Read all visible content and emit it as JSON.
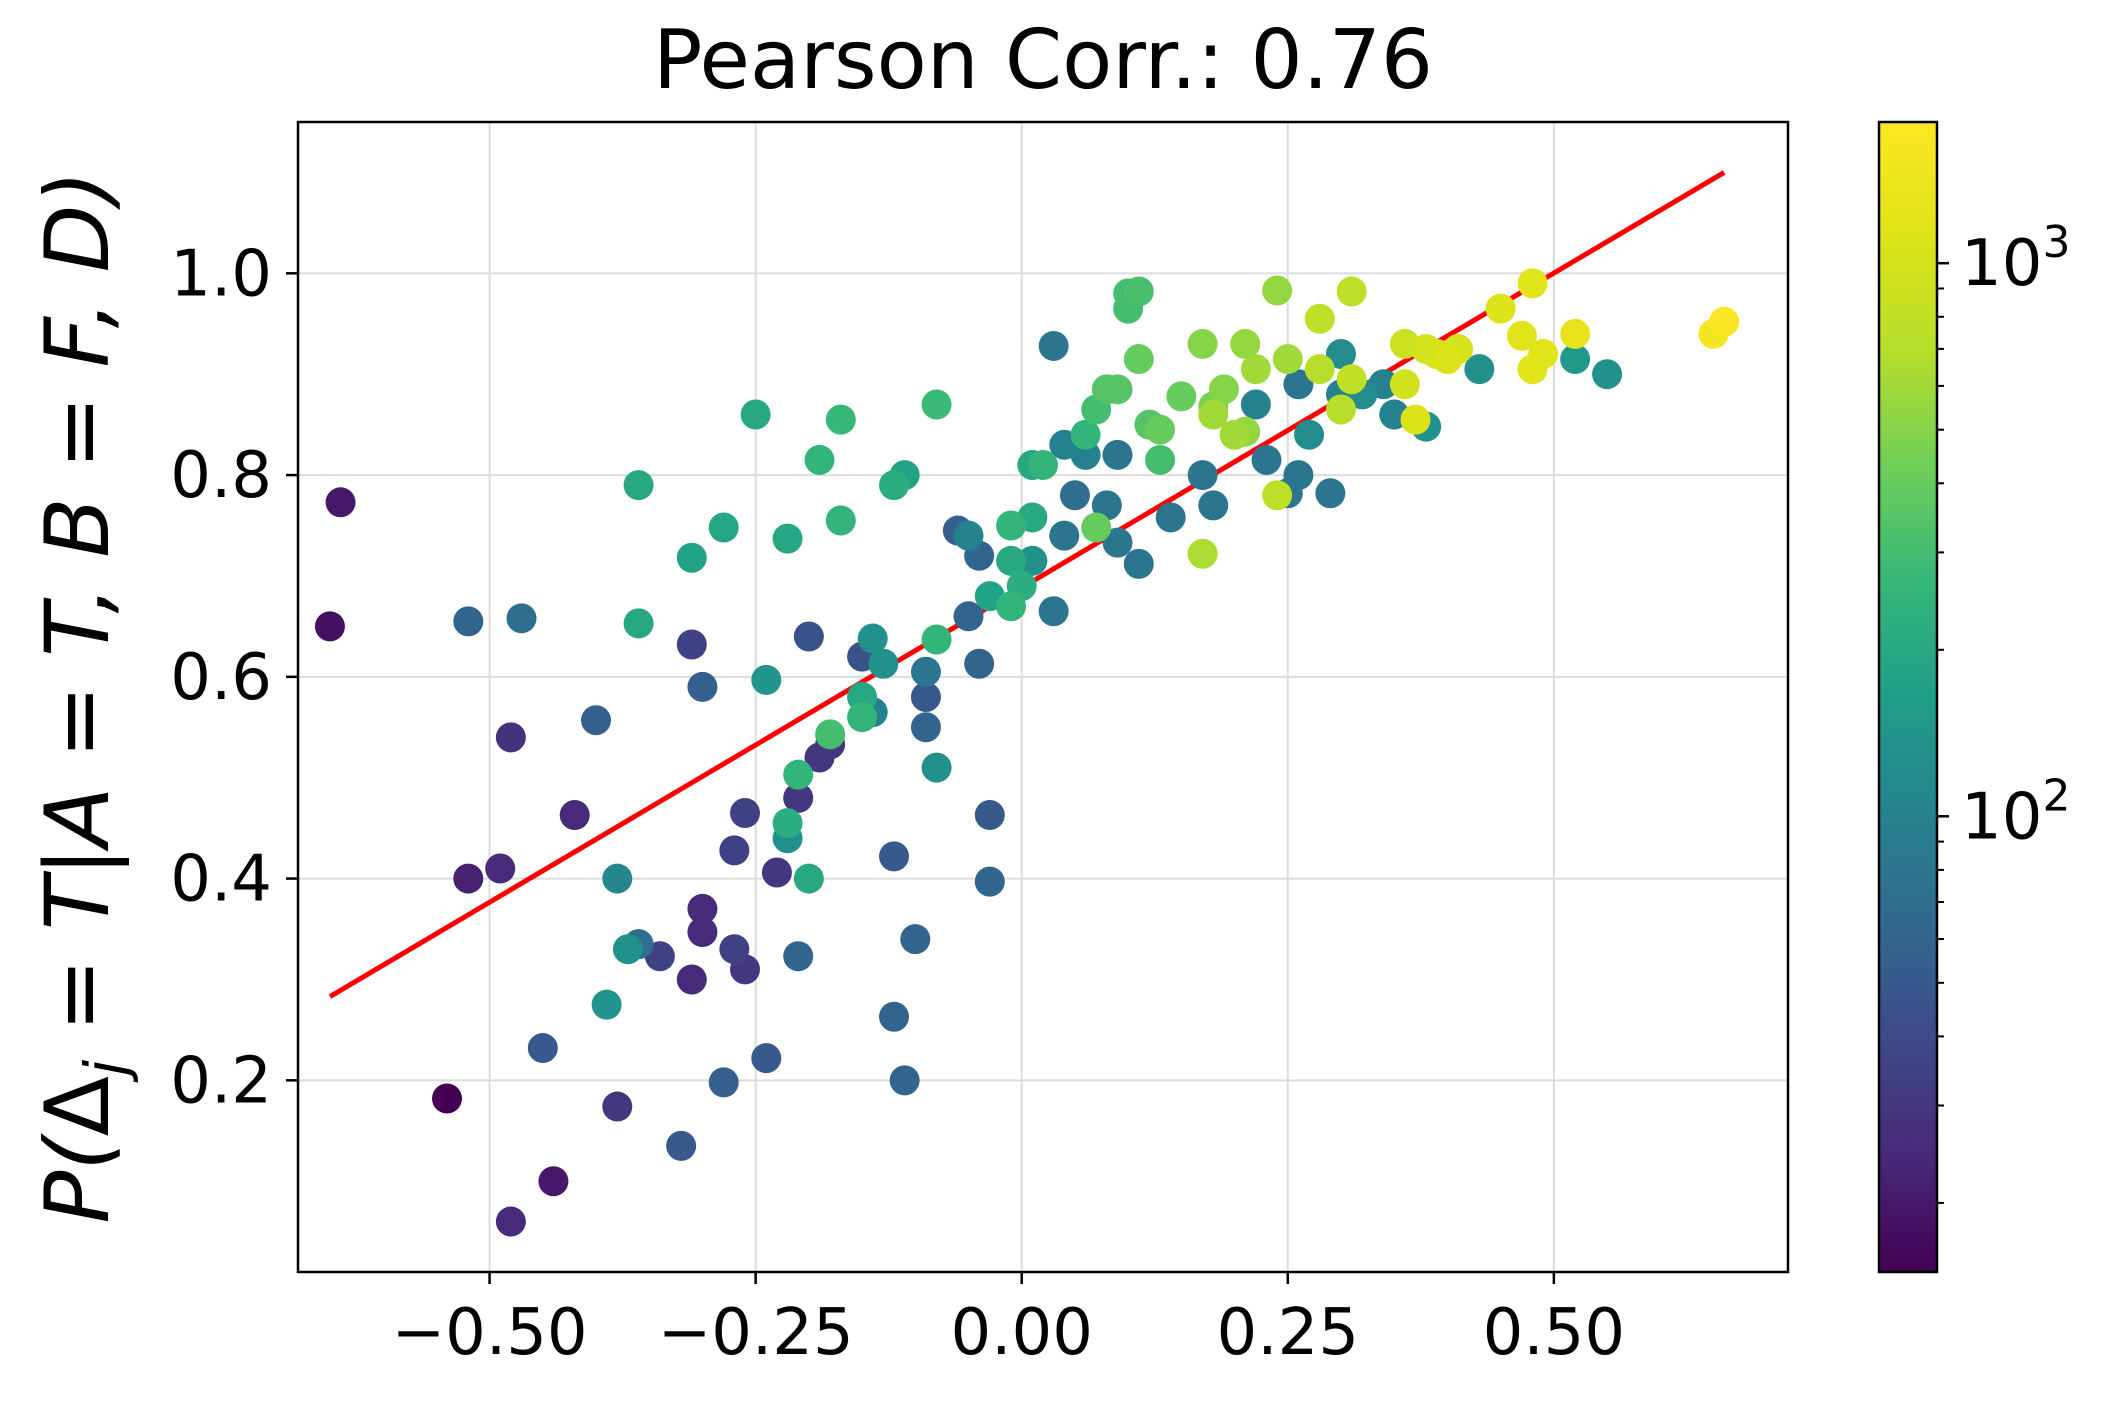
{
  "chart_data": {
    "type": "scatter",
    "title": "Pearson Corr.: 0.76",
    "xlabel": "",
    "ylabel": "P(Δj = T|A = T, B = F, D)",
    "ylabel_parts": {
      "pre": "P(",
      "delta": "Δ",
      "sub": "j",
      "post": " = T|A = T, B = F, D)"
    },
    "xlim": [
      -0.68,
      0.72
    ],
    "ylim": [
      0.01,
      1.15
    ],
    "xticks": [
      -0.5,
      -0.25,
      0.0,
      0.25,
      0.5
    ],
    "xtick_labels": [
      "−0.50",
      "−0.25",
      "0.00",
      "0.25",
      "0.50"
    ],
    "yticks": [
      0.2,
      0.4,
      0.6,
      0.8,
      1.0
    ],
    "ytick_labels": [
      "0.2",
      "0.4",
      "0.6",
      "0.8",
      "1.0"
    ],
    "grid": true,
    "colorbar": {
      "scale": "log",
      "colormap": "viridis",
      "range": [
        15,
        1800
      ],
      "ticks": [
        {
          "value": 100,
          "base": "10",
          "exp": "2"
        },
        {
          "value": 1000,
          "base": "10",
          "exp": "3"
        }
      ]
    },
    "fit_line": {
      "color": "#ff0000",
      "points": [
        [
          -0.65,
          0.283
        ],
        [
          0.66,
          1.1
        ]
      ]
    },
    "series": [
      {
        "name": "points",
        "points": [
          [
            -0.64,
            0.773,
            20
          ],
          [
            -0.65,
            0.65,
            18
          ],
          [
            -0.54,
            0.182,
            15
          ],
          [
            -0.48,
            0.06,
            25
          ],
          [
            -0.44,
            0.1,
            20
          ],
          [
            -0.49,
            0.41,
            25
          ],
          [
            -0.52,
            0.4,
            22
          ],
          [
            -0.48,
            0.54,
            28
          ],
          [
            -0.52,
            0.655,
            60
          ],
          [
            -0.47,
            0.658,
            70
          ],
          [
            -0.42,
            0.463,
            25
          ],
          [
            -0.45,
            0.232,
            50
          ],
          [
            -0.4,
            0.557,
            55
          ],
          [
            -0.38,
            0.4,
            110
          ],
          [
            -0.39,
            0.275,
            140
          ],
          [
            -0.38,
            0.174,
            30
          ],
          [
            -0.37,
            0.33,
            130
          ],
          [
            -0.36,
            0.335,
            70
          ],
          [
            -0.36,
            0.79,
            200
          ],
          [
            -0.36,
            0.653,
            200
          ],
          [
            -0.34,
            0.323,
            35
          ],
          [
            -0.31,
            0.632,
            35
          ],
          [
            -0.31,
            0.3,
            25
          ],
          [
            -0.31,
            0.718,
            180
          ],
          [
            -0.3,
            0.59,
            55
          ],
          [
            -0.3,
            0.37,
            25
          ],
          [
            -0.3,
            0.347,
            25
          ],
          [
            -0.28,
            0.748,
            190
          ],
          [
            -0.28,
            0.198,
            55
          ],
          [
            -0.32,
            0.135,
            50
          ],
          [
            -0.27,
            0.33,
            35
          ],
          [
            -0.27,
            0.428,
            35
          ],
          [
            -0.26,
            0.31,
            30
          ],
          [
            -0.26,
            0.465,
            35
          ],
          [
            -0.25,
            0.86,
            200
          ],
          [
            -0.24,
            0.597,
            140
          ],
          [
            -0.24,
            0.222,
            50
          ],
          [
            -0.22,
            0.737,
            190
          ],
          [
            -0.23,
            0.406,
            30
          ],
          [
            -0.22,
            0.44,
            130
          ],
          [
            -0.22,
            0.455,
            220
          ],
          [
            -0.21,
            0.48,
            30
          ],
          [
            -0.21,
            0.323,
            60
          ],
          [
            -0.2,
            0.4,
            200
          ],
          [
            -0.21,
            0.503,
            250
          ],
          [
            -0.2,
            0.64,
            45
          ],
          [
            -0.19,
            0.52,
            30
          ],
          [
            -0.19,
            0.815,
            250
          ],
          [
            -0.18,
            0.543,
            300
          ],
          [
            -0.18,
            0.533,
            30
          ],
          [
            -0.17,
            0.755,
            250
          ],
          [
            -0.17,
            0.855,
            270
          ],
          [
            -0.15,
            0.62,
            45
          ],
          [
            -0.15,
            0.58,
            200
          ],
          [
            -0.15,
            0.56,
            250
          ],
          [
            -0.14,
            0.565,
            100
          ],
          [
            -0.14,
            0.638,
            130
          ],
          [
            -0.13,
            0.613,
            130
          ],
          [
            -0.12,
            0.79,
            220
          ],
          [
            -0.12,
            0.422,
            50
          ],
          [
            -0.12,
            0.263,
            60
          ],
          [
            -0.11,
            0.8,
            180
          ],
          [
            -0.11,
            0.2,
            60
          ],
          [
            -0.1,
            0.34,
            60
          ],
          [
            -0.09,
            0.55,
            60
          ],
          [
            -0.09,
            0.605,
            80
          ],
          [
            -0.09,
            0.58,
            50
          ],
          [
            -0.08,
            0.87,
            280
          ],
          [
            -0.08,
            0.51,
            130
          ],
          [
            -0.08,
            0.637,
            250
          ],
          [
            -0.06,
            0.745,
            55
          ],
          [
            -0.05,
            0.74,
            100
          ],
          [
            -0.05,
            0.66,
            60
          ],
          [
            -0.04,
            0.72,
            60
          ],
          [
            -0.04,
            0.613,
            60
          ],
          [
            -0.03,
            0.463,
            50
          ],
          [
            -0.03,
            0.397,
            60
          ],
          [
            -0.03,
            0.68,
            180
          ],
          [
            -0.01,
            0.67,
            250
          ],
          [
            -0.01,
            0.75,
            250
          ],
          [
            -0.01,
            0.715,
            200
          ],
          [
            0.0,
            0.69,
            220
          ],
          [
            0.01,
            0.81,
            200
          ],
          [
            0.01,
            0.715,
            130
          ],
          [
            0.01,
            0.758,
            200
          ],
          [
            0.02,
            0.81,
            250
          ],
          [
            0.03,
            0.928,
            80
          ],
          [
            0.03,
            0.665,
            80
          ],
          [
            0.04,
            0.74,
            80
          ],
          [
            0.04,
            0.83,
            100
          ],
          [
            0.05,
            0.78,
            70
          ],
          [
            0.06,
            0.84,
            250
          ],
          [
            0.06,
            0.82,
            100
          ],
          [
            0.07,
            0.865,
            300
          ],
          [
            0.07,
            0.748,
            400
          ],
          [
            0.08,
            0.885,
            350
          ],
          [
            0.08,
            0.77,
            80
          ],
          [
            0.09,
            0.885,
            350
          ],
          [
            0.09,
            0.733,
            80
          ],
          [
            0.09,
            0.82,
            80
          ],
          [
            0.1,
            0.965,
            300
          ],
          [
            0.1,
            0.98,
            300
          ],
          [
            0.11,
            0.982,
            320
          ],
          [
            0.11,
            0.915,
            400
          ],
          [
            0.11,
            0.712,
            80
          ],
          [
            0.12,
            0.85,
            350
          ],
          [
            0.13,
            0.815,
            300
          ],
          [
            0.13,
            0.845,
            400
          ],
          [
            0.14,
            0.758,
            80
          ],
          [
            0.15,
            0.878,
            400
          ],
          [
            0.17,
            0.93,
            500
          ],
          [
            0.17,
            0.8,
            80
          ],
          [
            0.17,
            0.722,
            650
          ],
          [
            0.18,
            0.77,
            80
          ],
          [
            0.18,
            0.868,
            450
          ],
          [
            0.18,
            0.86,
            600
          ],
          [
            0.19,
            0.885,
            500
          ],
          [
            0.2,
            0.84,
            600
          ],
          [
            0.21,
            0.843,
            550
          ],
          [
            0.21,
            0.93,
            550
          ],
          [
            0.22,
            0.905,
            600
          ],
          [
            0.22,
            0.87,
            100
          ],
          [
            0.23,
            0.815,
            80
          ],
          [
            0.24,
            0.983,
            550
          ],
          [
            0.24,
            0.78,
            750
          ],
          [
            0.25,
            0.915,
            600
          ],
          [
            0.25,
            0.782,
            80
          ],
          [
            0.26,
            0.89,
            80
          ],
          [
            0.26,
            0.8,
            80
          ],
          [
            0.27,
            0.84,
            120
          ],
          [
            0.28,
            0.955,
            750
          ],
          [
            0.28,
            0.905,
            700
          ],
          [
            0.29,
            0.782,
            80
          ],
          [
            0.3,
            0.92,
            120
          ],
          [
            0.3,
            0.88,
            100
          ],
          [
            0.3,
            0.865,
            700
          ],
          [
            0.31,
            0.895,
            800
          ],
          [
            0.31,
            0.982,
            750
          ],
          [
            0.32,
            0.88,
            120
          ],
          [
            0.34,
            0.89,
            100
          ],
          [
            0.35,
            0.86,
            100
          ],
          [
            0.36,
            0.93,
            900
          ],
          [
            0.36,
            0.89,
            950
          ],
          [
            0.37,
            0.855,
            1100
          ],
          [
            0.38,
            0.848,
            130
          ],
          [
            0.38,
            0.925,
            1000
          ],
          [
            0.39,
            0.92,
            1000
          ],
          [
            0.4,
            0.915,
            1100
          ],
          [
            0.41,
            0.925,
            1000
          ],
          [
            0.43,
            0.905,
            130
          ],
          [
            0.45,
            0.965,
            1100
          ],
          [
            0.47,
            0.938,
            1200
          ],
          [
            0.48,
            0.99,
            1200
          ],
          [
            0.48,
            0.905,
            1200
          ],
          [
            0.49,
            0.92,
            1200
          ],
          [
            0.52,
            0.94,
            1300
          ],
          [
            0.52,
            0.915,
            150
          ],
          [
            0.55,
            0.9,
            130
          ],
          [
            0.65,
            0.94,
            1600
          ],
          [
            0.66,
            0.952,
            1700
          ]
        ]
      }
    ]
  }
}
